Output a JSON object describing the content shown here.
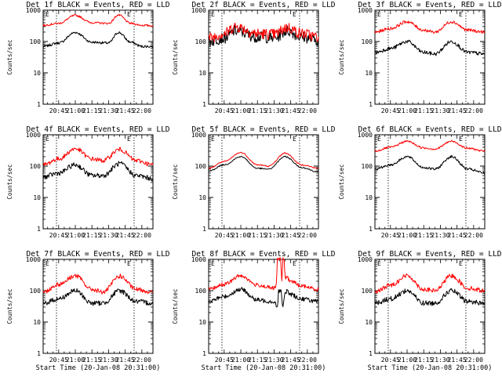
{
  "chart_data": [
    {
      "type": "line",
      "title": "Det 1f BLACK = Events, RED = LLD",
      "xlabel": "",
      "ylabel": "Counts/sec",
      "yscale": "log",
      "ylim": [
        1,
        1000
      ],
      "xlim": [
        "20:31",
        "22:10"
      ],
      "x_tick_labels": [
        "20:45",
        "21:00",
        "21:15",
        "21:30",
        "21:45",
        "22:00"
      ],
      "y_tick_labels": [
        "1",
        "10",
        "100",
        "1000"
      ],
      "vlines": [
        "20:43",
        "21:53"
      ],
      "marker_label": "E",
      "series": [
        {
          "color": "#000000",
          "x": [
            "20:31",
            "20:45",
            "21:00",
            "21:15",
            "21:30",
            "21:39",
            "21:50",
            "22:00",
            "22:10"
          ],
          "values": [
            70,
            90,
            195,
            95,
            90,
            195,
            95,
            70,
            70
          ],
          "noise": 0.04
        },
        {
          "color": "#ff0000",
          "x": [
            "20:31",
            "20:45",
            "21:00",
            "21:15",
            "21:30",
            "21:39",
            "21:50",
            "22:00",
            "22:10"
          ],
          "values": [
            330,
            380,
            680,
            400,
            380,
            700,
            380,
            330,
            320
          ],
          "noise": 0.03
        }
      ]
    },
    {
      "type": "line",
      "title": "Det 2f BLACK = Events, RED = LLD",
      "xlabel": "",
      "ylabel": "Counts/sec",
      "yscale": "log",
      "ylim": [
        1,
        1000
      ],
      "xlim": [
        "20:31",
        "22:10"
      ],
      "x_tick_labels": [
        "20:45",
        "21:00",
        "21:15",
        "21:30",
        "21:45",
        "22:00"
      ],
      "y_tick_labels": [
        "1",
        "10",
        "100",
        "1000"
      ],
      "vlines": [
        "20:43",
        "21:53"
      ],
      "marker_label": "E",
      "series": [
        {
          "color": "#000000",
          "x": [
            "20:31",
            "20:45",
            "20:55",
            "21:15",
            "21:30",
            "21:42",
            "21:55",
            "22:10"
          ],
          "values": [
            100,
            130,
            220,
            140,
            130,
            220,
            140,
            110
          ],
          "noise": 0.18
        },
        {
          "color": "#ff0000",
          "x": [
            "20:31",
            "20:45",
            "20:55",
            "21:15",
            "21:30",
            "21:42",
            "21:55",
            "22:10"
          ],
          "values": [
            130,
            180,
            300,
            180,
            170,
            280,
            180,
            140
          ],
          "noise": 0.18
        }
      ]
    },
    {
      "type": "line",
      "title": "Det 3f BLACK = Events, RED = LLD",
      "xlabel": "",
      "ylabel": "Counts/sec",
      "yscale": "log",
      "ylim": [
        1,
        1000
      ],
      "xlim": [
        "20:31",
        "22:10"
      ],
      "x_tick_labels": [
        "20:45",
        "21:00",
        "21:15",
        "21:30",
        "21:45",
        "22:00"
      ],
      "y_tick_labels": [
        "1",
        "10",
        "100",
        "1000"
      ],
      "vlines": [
        "20:43",
        "21:53"
      ],
      "marker_label": "E",
      "series": [
        {
          "color": "#000000",
          "x": [
            "20:31",
            "20:45",
            "21:00",
            "21:15",
            "21:25",
            "21:40",
            "21:55",
            "22:10"
          ],
          "values": [
            45,
            60,
            100,
            45,
            40,
            100,
            45,
            40
          ],
          "noise": 0.06
        },
        {
          "color": "#ff0000",
          "x": [
            "20:31",
            "20:45",
            "21:00",
            "21:15",
            "21:25",
            "21:40",
            "21:55",
            "22:10"
          ],
          "values": [
            200,
            260,
            430,
            230,
            200,
            430,
            230,
            200
          ],
          "noise": 0.05
        }
      ]
    },
    {
      "type": "line",
      "title": "Det 4f BLACK = Events, RED = LLD",
      "xlabel": "",
      "ylabel": "Counts/sec",
      "yscale": "log",
      "ylim": [
        1,
        1000
      ],
      "xlim": [
        "20:31",
        "22:10"
      ],
      "x_tick_labels": [
        "20:45",
        "21:00",
        "21:15",
        "21:30",
        "21:45",
        "22:00"
      ],
      "y_tick_labels": [
        "1",
        "10",
        "100",
        "1000"
      ],
      "vlines": [
        "20:43",
        "21:53"
      ],
      "marker_label": "E",
      "series": [
        {
          "color": "#000000",
          "x": [
            "20:31",
            "20:45",
            "21:00",
            "21:15",
            "21:25",
            "21:40",
            "21:55",
            "22:10"
          ],
          "values": [
            45,
            60,
            110,
            50,
            50,
            120,
            50,
            40
          ],
          "noise": 0.08
        },
        {
          "color": "#ff0000",
          "x": [
            "20:31",
            "20:45",
            "21:00",
            "21:15",
            "21:25",
            "21:40",
            "21:55",
            "22:10"
          ],
          "values": [
            110,
            170,
            360,
            170,
            150,
            340,
            150,
            110
          ],
          "noise": 0.07
        }
      ]
    },
    {
      "type": "line",
      "title": "Det 5f BLACK = Events, RED = LLD",
      "xlabel": "",
      "ylabel": "Counts/sec",
      "yscale": "log",
      "ylim": [
        1,
        1000
      ],
      "xlim": [
        "20:31",
        "22:10"
      ],
      "x_tick_labels": [
        "20:45",
        "21:00",
        "21:15",
        "21:30",
        "21:45",
        "22:00"
      ],
      "y_tick_labels": [
        "1",
        "10",
        "100",
        "1000"
      ],
      "vlines": [
        "20:43",
        "21:53"
      ],
      "marker_label": "E",
      "series": [
        {
          "color": "#000000",
          "x": [
            "20:31",
            "20:45",
            "21:00",
            "21:15",
            "21:25",
            "21:40",
            "21:55",
            "22:10"
          ],
          "values": [
            70,
            110,
            200,
            85,
            80,
            200,
            90,
            65
          ],
          "noise": 0.02
        },
        {
          "color": "#ff0000",
          "x": [
            "20:31",
            "20:45",
            "21:00",
            "21:15",
            "21:25",
            "21:40",
            "21:55",
            "22:10"
          ],
          "values": [
            85,
            140,
            270,
            110,
            100,
            260,
            110,
            85
          ],
          "noise": 0.02
        }
      ]
    },
    {
      "type": "line",
      "title": "Det 6f BLACK = Events, RED = LLD",
      "xlabel": "",
      "ylabel": "Counts/sec",
      "yscale": "log",
      "ylim": [
        1,
        1000
      ],
      "xlim": [
        "20:31",
        "22:10"
      ],
      "x_tick_labels": [
        "20:45",
        "21:00",
        "21:15",
        "21:30",
        "21:45",
        "22:00"
      ],
      "y_tick_labels": [
        "1",
        "10",
        "100",
        "1000"
      ],
      "vlines": [
        "20:43",
        "21:53"
      ],
      "marker_label": "E",
      "series": [
        {
          "color": "#000000",
          "x": [
            "20:31",
            "20:45",
            "21:00",
            "21:15",
            "21:25",
            "21:40",
            "21:55",
            "22:10"
          ],
          "values": [
            80,
            110,
            200,
            90,
            80,
            200,
            80,
            60
          ],
          "noise": 0.04
        },
        {
          "color": "#ff0000",
          "x": [
            "20:31",
            "20:45",
            "21:00",
            "21:15",
            "21:25",
            "21:40",
            "21:55",
            "22:10"
          ],
          "values": [
            300,
            400,
            620,
            380,
            350,
            620,
            370,
            300
          ],
          "noise": 0.03
        }
      ]
    },
    {
      "type": "line",
      "title": "Det 7f BLACK = Events, RED = LLD",
      "xlabel": "Start Time (20-Jan-08 20:31:00)",
      "ylabel": "Counts/sec",
      "yscale": "log",
      "ylim": [
        1,
        1000
      ],
      "xlim": [
        "20:31",
        "22:10"
      ],
      "x_tick_labels": [
        "20:45",
        "21:00",
        "21:15",
        "21:30",
        "21:45",
        "22:00"
      ],
      "y_tick_labels": [
        "1",
        "10",
        "100",
        "1000"
      ],
      "vlines": [
        "20:43",
        "21:53"
      ],
      "marker_label": "E",
      "series": [
        {
          "color": "#000000",
          "x": [
            "20:31",
            "20:45",
            "21:00",
            "21:15",
            "21:25",
            "21:40",
            "21:55",
            "22:10"
          ],
          "values": [
            40,
            55,
            100,
            40,
            40,
            100,
            45,
            40
          ],
          "noise": 0.08
        },
        {
          "color": "#ff0000",
          "x": [
            "20:31",
            "20:45",
            "21:00",
            "21:15",
            "21:25",
            "21:40",
            "21:55",
            "22:10"
          ],
          "values": [
            90,
            160,
            300,
            110,
            90,
            290,
            110,
            90
          ],
          "noise": 0.07
        }
      ]
    },
    {
      "type": "line",
      "title": "Det 8f BLACK = Events, RED = LLD",
      "xlabel": "Start Time (20-Jan-08 20:31:00)",
      "ylabel": "Counts/sec",
      "yscale": "log",
      "ylim": [
        1,
        1000
      ],
      "xlim": [
        "20:31",
        "22:10"
      ],
      "x_tick_labels": [
        "20:45",
        "21:00",
        "21:15",
        "21:30",
        "21:45",
        "22:00"
      ],
      "y_tick_labels": [
        "1",
        "10",
        "100",
        "1000"
      ],
      "vlines": [
        "20:43",
        "21:53"
      ],
      "marker_label": "E",
      "series": [
        {
          "color": "#000000",
          "x": [
            "20:31",
            "20:45",
            "21:00",
            "21:15",
            "21:30",
            "21:33",
            "21:34",
            "21:36",
            "21:38",
            "21:39",
            "21:40",
            "21:42",
            "21:43",
            "21:55",
            "22:10"
          ],
          "values": [
            45,
            65,
            110,
            50,
            45,
            30,
            100,
            100,
            30,
            55,
            80,
            110,
            80,
            55,
            45
          ],
          "noise": 0.07
        },
        {
          "color": "#ff0000",
          "x": [
            "20:31",
            "20:45",
            "21:00",
            "21:15",
            "21:30",
            "21:32",
            "21:33",
            "21:36",
            "21:37",
            "21:38",
            "21:39",
            "21:40",
            "21:42",
            "21:45",
            "21:55",
            "22:10"
          ],
          "values": [
            110,
            160,
            300,
            150,
            120,
            150,
            1000,
            1000,
            180,
            1000,
            1000,
            270,
            250,
            200,
            140,
            110
          ],
          "noise": 0.06
        }
      ]
    },
    {
      "type": "line",
      "title": "Det 9f BLACK = Events, RED = LLD",
      "xlabel": "Start Time (20-Jan-08 20:31:00)",
      "ylabel": "Counts/sec",
      "yscale": "log",
      "ylim": [
        1,
        1000
      ],
      "xlim": [
        "20:31",
        "22:10"
      ],
      "x_tick_labels": [
        "20:45",
        "21:00",
        "21:15",
        "21:30",
        "21:45",
        "22:00"
      ],
      "y_tick_labels": [
        "1",
        "10",
        "100",
        "1000"
      ],
      "vlines": [
        "20:43",
        "21:53"
      ],
      "marker_label": "E",
      "series": [
        {
          "color": "#000000",
          "x": [
            "20:31",
            "20:45",
            "21:00",
            "21:15",
            "21:25",
            "21:40",
            "21:55",
            "22:10"
          ],
          "values": [
            40,
            55,
            100,
            40,
            40,
            100,
            45,
            40
          ],
          "noise": 0.08
        },
        {
          "color": "#ff0000",
          "x": [
            "20:31",
            "20:45",
            "21:00",
            "21:15",
            "21:25",
            "21:40",
            "21:55",
            "22:10"
          ],
          "values": [
            90,
            150,
            300,
            110,
            100,
            300,
            120,
            100
          ],
          "noise": 0.07
        }
      ]
    }
  ]
}
